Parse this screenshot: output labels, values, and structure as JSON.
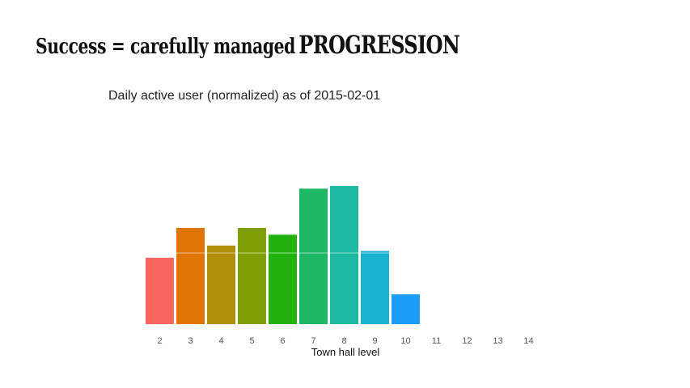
{
  "slide": {
    "title_part1": "Success = carefully managed",
    "title_part2": "PROGRESSION"
  },
  "chart_data": {
    "type": "bar",
    "title": "Daily active user (normalized) as of 2015-02-01",
    "xlabel": "Town hall level",
    "ylabel": "",
    "categories": [
      "2",
      "3",
      "4",
      "5",
      "6",
      "7",
      "8",
      "9",
      "10",
      "11",
      "12",
      "13",
      "14"
    ],
    "values": [
      0.49,
      0.71,
      0.58,
      0.71,
      0.66,
      1.0,
      1.02,
      0.54,
      0.22,
      0,
      0,
      0,
      0
    ],
    "ylim": [
      0,
      1.05
    ],
    "colors": [
      "#f8645e",
      "#de7506",
      "#b08f0b",
      "#7ea006",
      "#22b20d",
      "#1db766",
      "#1bb99f",
      "#19b1cf",
      "#1b9cf6",
      "#9e8cf9",
      "#d26ee8",
      "#f55fc6",
      "#fb6395"
    ],
    "grid": true,
    "legend": "none"
  }
}
